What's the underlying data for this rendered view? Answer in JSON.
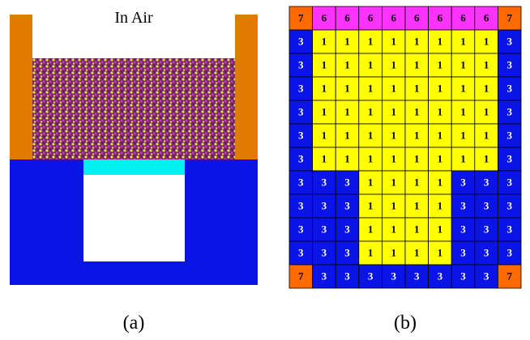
{
  "panel_a": {
    "label": "In Air",
    "caption": "(a)"
  },
  "panel_b": {
    "caption": "(b)",
    "cell_colors": {
      "1": "#ffff00",
      "3": "#0a14e6",
      "6": "#ff33ff",
      "7": "#ff6a00"
    },
    "text_colors": {
      "1": "#000000",
      "3": "#ffffff",
      "6": "#000000",
      "7": "#000000"
    },
    "rows": [
      [
        7,
        6,
        6,
        6,
        6,
        6,
        6,
        6,
        6,
        7
      ],
      [
        3,
        1,
        1,
        1,
        1,
        1,
        1,
        1,
        1,
        3
      ],
      [
        3,
        1,
        1,
        1,
        1,
        1,
        1,
        1,
        1,
        3
      ],
      [
        3,
        1,
        1,
        1,
        1,
        1,
        1,
        1,
        1,
        3
      ],
      [
        3,
        1,
        1,
        1,
        1,
        1,
        1,
        1,
        1,
        3
      ],
      [
        3,
        1,
        1,
        1,
        1,
        1,
        1,
        1,
        1,
        3
      ],
      [
        3,
        1,
        1,
        1,
        1,
        1,
        1,
        1,
        1,
        3
      ],
      [
        3,
        3,
        3,
        1,
        1,
        1,
        1,
        3,
        3,
        3
      ],
      [
        3,
        3,
        3,
        1,
        1,
        1,
        1,
        3,
        3,
        3
      ],
      [
        3,
        3,
        3,
        1,
        1,
        1,
        1,
        3,
        3,
        3
      ],
      [
        3,
        3,
        3,
        1,
        1,
        1,
        1,
        3,
        3,
        3
      ],
      [
        7,
        3,
        3,
        3,
        3,
        3,
        3,
        3,
        3,
        7
      ]
    ]
  }
}
